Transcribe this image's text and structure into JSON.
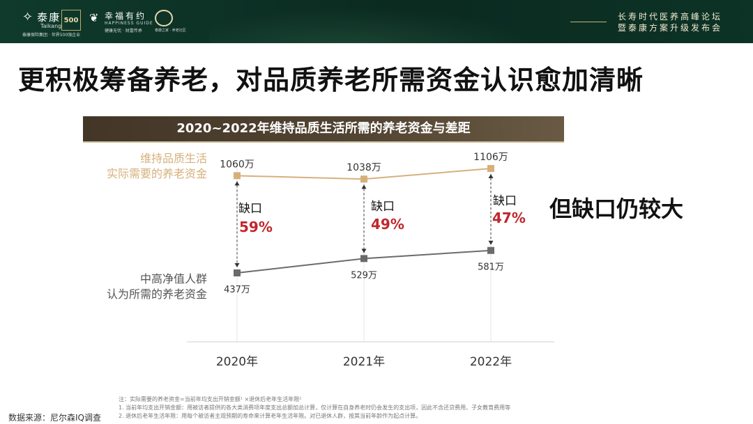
{
  "header": {
    "brand_name": "泰康",
    "brand_latin": "Taikang",
    "brand_tag": "泰康保险集团 · 世界500强企业",
    "badge": "500",
    "sub_brand_name": "幸福有约",
    "sub_brand_latin": "HAPPINESS GUIDE",
    "sub_brand_tag": "健康无忧 · 财富传承",
    "ring_tag": "泰康之家 · 养老社区",
    "event_line1": "长寿时代医养高峰论坛",
    "event_line2": "暨泰康方案升级发布会"
  },
  "title": "更积极筹备养老，对品质养老所需资金认识愈加清晰",
  "side_note": "但缺口仍较大",
  "chart_data": {
    "type": "line",
    "title": "2020~2022年维持品质生活所需的养老资金与差距",
    "categories": [
      "2020年",
      "2021年",
      "2022年"
    ],
    "series": [
      {
        "name": "维持品质生活\n实际需要的养老资金",
        "name_lines": [
          "维持品质生活",
          "实际需要的养老资金"
        ],
        "values": [
          1060,
          1038,
          1106
        ],
        "labels": [
          "1060万",
          "1038万",
          "1106万"
        ],
        "color": "#d6b07c"
      },
      {
        "name": "中高净值人群\n认为所需的养老资金",
        "name_lines": [
          "中高净值人群",
          "认为所需的养老资金"
        ],
        "values": [
          437,
          529,
          581
        ],
        "labels": [
          "437万",
          "529万",
          "581万"
        ],
        "color": "#6b6b6b"
      }
    ],
    "gaps": [
      {
        "label": "缺口",
        "value": "59%"
      },
      {
        "label": "缺口",
        "value": "49%"
      },
      {
        "label": "缺口",
        "value": "47%"
      }
    ],
    "gap_color": "#c0262d",
    "ylim": [
      300,
      1250
    ],
    "grid": false
  },
  "notes": {
    "line0": "注：实际需要的养老资金=当前年均支出开销金额¹ ×退休后老年生活年限²",
    "line1": "1.    当前年均支出开销金额：用被访者提供的各大类消费项年度支出总额加总计算，仅计算在自身养老时仍会发生的支出项，因此不含还贷费用、子女教育费用等",
    "line2": "2.    退休后老年生活年限：用每个被访者主观预期的寿命来计算老年生活年限。对已退休人群，按其当前年龄作为起点计算。"
  },
  "source": "数据来源：尼尔森IQ调查"
}
